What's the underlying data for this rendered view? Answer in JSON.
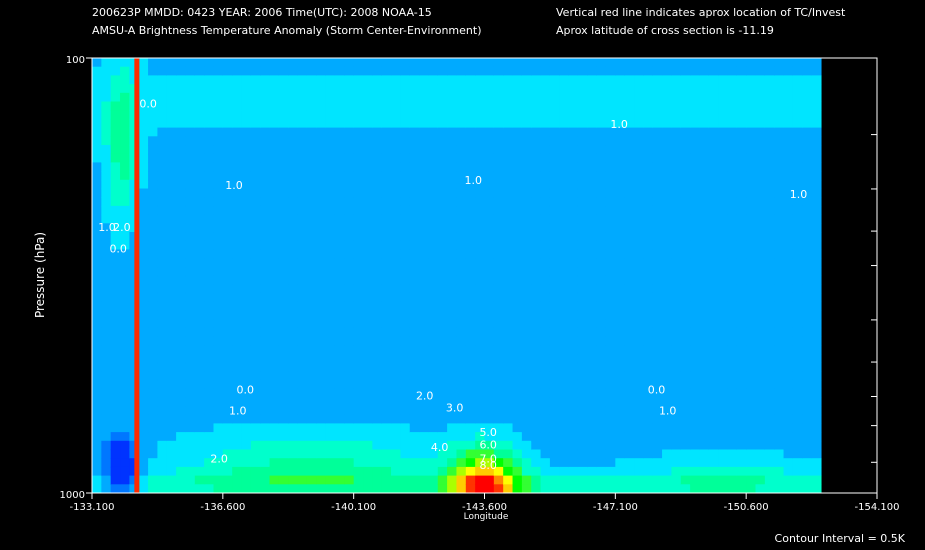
{
  "header": {
    "line1": "200623P  MMDD: 0423 YEAR: 2006 Time(UTC): 2008 NOAA-15",
    "line2": "AMSU-A Brightness Temperature Anomaly (Storm Center-Environment)",
    "right1": "Vertical red line indicates aprox location of TC/Invest",
    "right2": "Aprox latitude of cross section is -11.19"
  },
  "footer": {
    "contour_interval": "Contour Interval = 0.5K"
  },
  "colors": {
    "background": "#000000",
    "tc_line": "#ff2a00",
    "contour_line": "#ffffff",
    "palette": [
      "#0033ff",
      "#0077ff",
      "#00aaff",
      "#00e5ff",
      "#00ffcc",
      "#00ff99",
      "#33ff33",
      "#00ff00",
      "#aaff00",
      "#ffff00",
      "#ffcc00",
      "#ff8800",
      "#ff3300",
      "#ff0000"
    ]
  },
  "chart_data": {
    "type": "heatmap",
    "title": "AMSU-A Brightness Temperature Anomaly (Storm Center-Environment)",
    "xlabel": "Longitude",
    "ylabel": "Pressure (hPa)",
    "x_ticks": [
      "-133.100",
      "-136.600",
      "-140.100",
      "-143.600",
      "-147.100",
      "-150.600",
      "-154.100"
    ],
    "x_tick_values": [
      -133.1,
      -136.6,
      -140.1,
      -143.6,
      -147.1,
      -150.6,
      -154.1
    ],
    "y_ticks": [
      "100",
      "1000"
    ],
    "y_tick_values": [
      100,
      1000
    ],
    "y_scale": "log",
    "xlim": [
      -133.1,
      -154.1
    ],
    "ylim": [
      1000,
      100
    ],
    "tc_longitude": -134.3,
    "data_extent_x": [
      -133.1,
      -152.6
    ],
    "levels_hpa": [
      100,
      150,
      200,
      250,
      300,
      400,
      500,
      600,
      700,
      850,
      1000
    ],
    "contour_labels": [
      {
        "text": "1.0",
        "lon": -147.2,
        "p": 145
      },
      {
        "text": "0.0",
        "lon": -134.6,
        "p": 130
      },
      {
        "text": "1.0",
        "lon": -133.5,
        "p": 250
      },
      {
        "text": "0.0",
        "lon": -133.8,
        "p": 280
      },
      {
        "text": "2.0",
        "lon": -133.9,
        "p": 250
      },
      {
        "text": "1.0",
        "lon": -136.9,
        "p": 200
      },
      {
        "text": "1.0",
        "lon": -143.3,
        "p": 195
      },
      {
        "text": "1.0",
        "lon": -152.0,
        "p": 210
      },
      {
        "text": "0.0",
        "lon": -137.2,
        "p": 590
      },
      {
        "text": "1.0",
        "lon": -137.0,
        "p": 660
      },
      {
        "text": "0.0",
        "lon": -148.2,
        "p": 590
      },
      {
        "text": "1.0",
        "lon": -148.5,
        "p": 660
      },
      {
        "text": "2.0",
        "lon": -142.0,
        "p": 610
      },
      {
        "text": "3.0",
        "lon": -142.8,
        "p": 650
      },
      {
        "text": "2.0",
        "lon": -136.5,
        "p": 850
      },
      {
        "text": "4.0",
        "lon": -142.4,
        "p": 800
      },
      {
        "text": "5.0",
        "lon": -143.7,
        "p": 740
      },
      {
        "text": "6.0",
        "lon": -143.7,
        "p": 790
      },
      {
        "text": "7.0",
        "lon": -143.7,
        "p": 850
      },
      {
        "text": "8.0",
        "lon": -143.7,
        "p": 880
      }
    ],
    "contour_interval_K": 0.5,
    "grid": false
  }
}
